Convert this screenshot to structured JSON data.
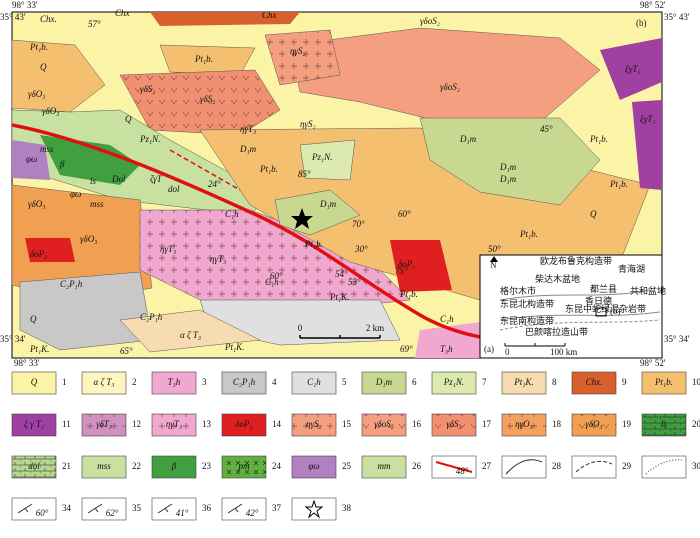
{
  "frame": {
    "lon_left": "98° 33'",
    "lon_right": "98° 52'",
    "lat_top": "35° 43'",
    "lat_bottom": "35° 34'",
    "panel_label": "(b)"
  },
  "map_labels": [
    "Chx.",
    "Chx",
    "Chx",
    "Q",
    "Pt₁b.",
    "γδO₃",
    "Q",
    "γδO₃",
    "57°",
    "Pt₁b.",
    "ηγS₂",
    "γδoS₂",
    "γδS₂",
    "γδS₂",
    "γδoS₂",
    "ξγT₂",
    "ξγT₁",
    "ηγT₃",
    "Pz₁N.",
    "D₁m",
    "Pz₁N.",
    "ηγS₂",
    "D₁m",
    "D₁m",
    "D₁m",
    "45°",
    "Pt₁b.",
    "Pt₁b.",
    "mss",
    "φω",
    "β",
    "ls",
    "Dol",
    "ζγT",
    "γδO₃",
    "φω",
    "mss",
    "dol",
    "C₁h",
    "ηγT₃",
    "Pt₁b.",
    "D₁m",
    "Pt₁b.",
    "Pt₁b.",
    "Q",
    "δoP₂",
    "Pt₁b.",
    "γδO₃",
    "δoP₂",
    "ηγT₃",
    "C₁h",
    "C₂P₁h",
    "Q",
    "Pt₁K.",
    "C₂P₁h",
    "Pt₁K.",
    "α ζ T₃",
    "C₁h",
    "T₃h",
    "Pt₁K.",
    "60°",
    "50°",
    "53°",
    "65°",
    "24°",
    "85°",
    "70°",
    "30°",
    "60°",
    "75°",
    "54°",
    "69°"
  ],
  "scale_bar": {
    "start": "0",
    "end": "2 km"
  },
  "inset": {
    "panel_label": "(a)",
    "north": "N",
    "labels": [
      "欧龙布鲁克构造带",
      "柴达木盆地",
      "格尔木市",
      "都兰县",
      "香日德",
      "东昆北构造带",
      "东昆中蛇绿混杂岩带",
      "东昆南构造带",
      "巴颜喀拉造山带",
      "青海湖",
      "共和盆地",
      "(b)"
    ],
    "scale_start": "0",
    "scale_end": "100 km"
  },
  "legend": [
    {
      "number": "1",
      "label": "Q"
    },
    {
      "number": "2",
      "label": "α ζ T₃"
    },
    {
      "number": "3",
      "label": "T₃h"
    },
    {
      "number": "4",
      "label": "C₂P₁h"
    },
    {
      "number": "5",
      "label": "C₁h"
    },
    {
      "number": "6",
      "label": "D₁m"
    },
    {
      "number": "7",
      "label": "Pz₁N."
    },
    {
      "number": "8",
      "label": "Pt₁K."
    },
    {
      "number": "9",
      "label": "Chx."
    },
    {
      "number": "10",
      "label": "Pt₁b."
    },
    {
      "number": "11",
      "label": "ξ γ T₂"
    },
    {
      "number": "12",
      "label": "γδT₃"
    },
    {
      "number": "13",
      "label": "ηγT₃"
    },
    {
      "number": "14",
      "label": "δoP₂"
    },
    {
      "number": "15",
      "label": "ηγS₂"
    },
    {
      "number": "16",
      "label": "γδoS₂"
    },
    {
      "number": "17",
      "label": "γδS₂"
    },
    {
      "number": "18",
      "label": "ηγO₃"
    },
    {
      "number": "19",
      "label": "γδO₃"
    },
    {
      "number": "20",
      "label": "ls"
    },
    {
      "number": "21",
      "label": "dol"
    },
    {
      "number": "22",
      "label": "mss"
    },
    {
      "number": "23",
      "label": "β"
    },
    {
      "number": "24",
      "label": "pm"
    },
    {
      "number": "25",
      "label": "φω"
    },
    {
      "number": "26",
      "label": "mm"
    },
    {
      "number": "27",
      "label": "48°"
    },
    {
      "number": "28"
    },
    {
      "number": "29"
    },
    {
      "number": "30"
    },
    {
      "number": "34",
      "label": "60°"
    },
    {
      "number": "35",
      "label": "62°"
    },
    {
      "number": "36",
      "label": "41°"
    },
    {
      "number": "37",
      "label": "42°"
    },
    {
      "number": "38"
    }
  ]
}
